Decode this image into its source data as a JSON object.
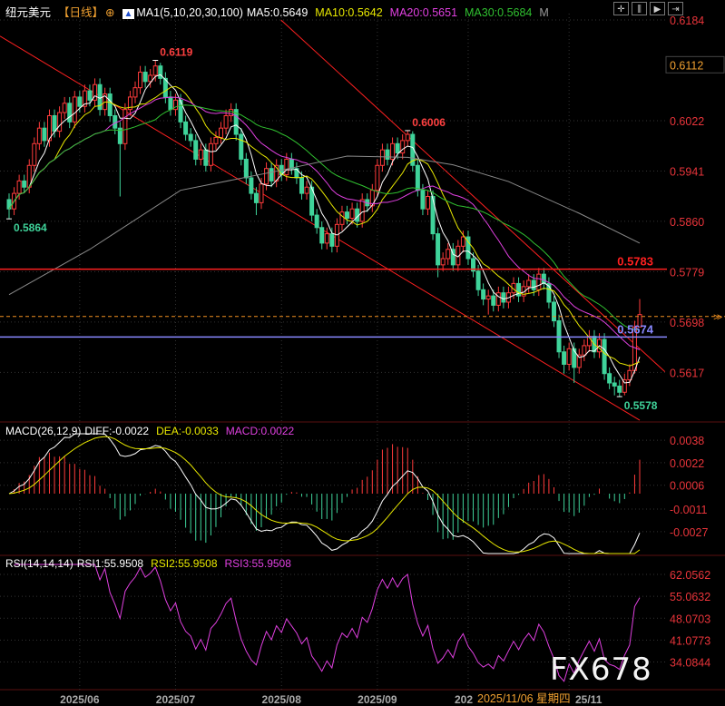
{
  "header": {
    "symbol": "纽元美元",
    "period": "【日线】",
    "ma_label": "MA1(5,10,20,30,100)",
    "ma5": "MA5:0.5649",
    "ma10": "MA10:0.5642",
    "ma20": "MA20:0.5651",
    "ma30": "MA30:0.5684",
    "more": "M"
  },
  "macd_header": {
    "label": "MACD(26,12,9)",
    "diff": "DIFF:-0.0022",
    "dea": "DEA:-0.0033",
    "macd": "MACD:0.0022"
  },
  "rsi_header": {
    "label": "RSI(14,14,14)",
    "rsi1": "RSI1:55.9508",
    "rsi2": "RSI2:55.9508",
    "rsi3": "RSI3:55.9508"
  },
  "tooltip_date": "2025/11/06 星期四",
  "watermark": "FX678",
  "colors": {
    "up": "#ff3b3b",
    "down": "#3fd39a",
    "ma5": "#ffffff",
    "ma10": "#e8e800",
    "ma20": "#e040e0",
    "ma30": "#30c030",
    "ma100": "#8a8a8a",
    "axis_text": "#e8343a",
    "support": "#8888ff",
    "resistance": "#ff2020",
    "last_price": "#f09020"
  },
  "chart_data": [
    {
      "type": "candlestick",
      "price_axis_ticks": [
        "0.6184",
        "0.6022",
        "0.5941",
        "0.5860",
        "0.5779",
        "0.5698",
        "0.5617"
      ],
      "price_range": [
        0.552,
        0.621
      ],
      "crosshair_price": "0.6112",
      "date_ticks": [
        {
          "index": 14,
          "label": "2025/06"
        },
        {
          "index": 33,
          "label": "2025/07"
        },
        {
          "index": 54,
          "label": "2025/08"
        },
        {
          "index": 73,
          "label": "2025/09"
        },
        {
          "index": 91,
          "label": "202"
        },
        {
          "index": 111,
          "label": "25/11"
        }
      ],
      "first_open": 0.5895,
      "close": [
        0.588,
        0.5905,
        0.5925,
        0.5915,
        0.595,
        0.5985,
        0.601,
        0.599,
        0.603,
        0.6005,
        0.6035,
        0.605,
        0.602,
        0.606,
        0.6045,
        0.607,
        0.6055,
        0.608,
        0.604,
        0.6065,
        0.603,
        0.601,
        0.5985,
        0.604,
        0.606,
        0.6075,
        0.61,
        0.6085,
        0.6095,
        0.611,
        0.609,
        0.606,
        0.604,
        0.6055,
        0.602,
        0.6,
        0.599,
        0.596,
        0.5975,
        0.595,
        0.5985,
        0.5995,
        0.601,
        0.603,
        0.604,
        0.6,
        0.596,
        0.593,
        0.5905,
        0.589,
        0.592,
        0.5945,
        0.5925,
        0.595,
        0.5935,
        0.596,
        0.5945,
        0.593,
        0.5905,
        0.5915,
        0.587,
        0.585,
        0.5825,
        0.584,
        0.582,
        0.5855,
        0.5875,
        0.5865,
        0.588,
        0.586,
        0.5895,
        0.5885,
        0.591,
        0.595,
        0.5975,
        0.596,
        0.5985,
        0.597,
        0.599,
        0.6,
        0.595,
        0.591,
        0.588,
        0.59,
        0.584,
        0.579,
        0.58,
        0.5815,
        0.579,
        0.582,
        0.5835,
        0.58,
        0.578,
        0.575,
        0.5735,
        0.574,
        0.5725,
        0.5745,
        0.573,
        0.5745,
        0.576,
        0.574,
        0.5755,
        0.5765,
        0.575,
        0.5775,
        0.576,
        0.573,
        0.57,
        0.565,
        0.563,
        0.5655,
        0.5625,
        0.5645,
        0.566,
        0.5675,
        0.565,
        0.567,
        0.5615,
        0.56,
        0.5595,
        0.5585,
        0.5605,
        0.562,
        0.569,
        0.571
      ],
      "high": [
        0.5905,
        0.5915,
        0.5935,
        0.5935,
        0.596,
        0.5995,
        0.602,
        0.602,
        0.604,
        0.604,
        0.6045,
        0.606,
        0.606,
        0.607,
        0.607,
        0.608,
        0.608,
        0.609,
        0.609,
        0.6075,
        0.6075,
        0.604,
        0.602,
        0.605,
        0.607,
        0.6085,
        0.611,
        0.611,
        0.6105,
        0.6119,
        0.6115,
        0.61,
        0.607,
        0.6065,
        0.6065,
        0.603,
        0.601,
        0.6,
        0.5985,
        0.5985,
        0.5995,
        0.6005,
        0.602,
        0.604,
        0.605,
        0.605,
        0.601,
        0.597,
        0.594,
        0.5915,
        0.593,
        0.5955,
        0.5955,
        0.596,
        0.596,
        0.597,
        0.597,
        0.5955,
        0.594,
        0.5925,
        0.5925,
        0.588,
        0.586,
        0.585,
        0.585,
        0.5865,
        0.5885,
        0.5885,
        0.589,
        0.589,
        0.5905,
        0.5905,
        0.592,
        0.596,
        0.5985,
        0.5985,
        0.5995,
        0.5995,
        0.6,
        0.6006,
        0.6005,
        0.596,
        0.592,
        0.591,
        0.591,
        0.585,
        0.581,
        0.5825,
        0.5825,
        0.583,
        0.5845,
        0.5845,
        0.581,
        0.579,
        0.576,
        0.575,
        0.575,
        0.5755,
        0.5755,
        0.5755,
        0.577,
        0.577,
        0.5765,
        0.5775,
        0.5775,
        0.5785,
        0.5785,
        0.577,
        0.574,
        0.571,
        0.566,
        0.5665,
        0.5665,
        0.5655,
        0.567,
        0.5685,
        0.5685,
        0.568,
        0.568,
        0.5625,
        0.561,
        0.5605,
        0.5615,
        0.563,
        0.57,
        0.5735
      ],
      "low": [
        0.5864,
        0.587,
        0.5895,
        0.5905,
        0.5905,
        0.594,
        0.5975,
        0.598,
        0.598,
        0.5995,
        0.5995,
        0.6025,
        0.601,
        0.601,
        0.6035,
        0.6035,
        0.6045,
        0.6045,
        0.603,
        0.603,
        0.602,
        0.6,
        0.59,
        0.5975,
        0.603,
        0.605,
        0.6065,
        0.6075,
        0.6075,
        0.6085,
        0.608,
        0.605,
        0.603,
        0.603,
        0.601,
        0.599,
        0.598,
        0.595,
        0.595,
        0.594,
        0.594,
        0.5975,
        0.5985,
        0.6,
        0.602,
        0.599,
        0.595,
        0.592,
        0.5895,
        0.587,
        0.588,
        0.591,
        0.5915,
        0.5915,
        0.5925,
        0.5925,
        0.5935,
        0.592,
        0.5895,
        0.5895,
        0.586,
        0.584,
        0.5815,
        0.5815,
        0.581,
        0.581,
        0.5845,
        0.5855,
        0.5855,
        0.585,
        0.585,
        0.5875,
        0.5875,
        0.59,
        0.594,
        0.595,
        0.595,
        0.596,
        0.596,
        0.598,
        0.594,
        0.59,
        0.587,
        0.587,
        0.583,
        0.577,
        0.578,
        0.579,
        0.578,
        0.578,
        0.581,
        0.579,
        0.577,
        0.574,
        0.5725,
        0.571,
        0.5715,
        0.5715,
        0.572,
        0.572,
        0.5735,
        0.573,
        0.573,
        0.5745,
        0.574,
        0.574,
        0.575,
        0.572,
        0.569,
        0.564,
        0.5615,
        0.562,
        0.56,
        0.5615,
        0.5635,
        0.565,
        0.564,
        0.564,
        0.5605,
        0.559,
        0.558,
        0.5578,
        0.558,
        0.5595,
        0.5615,
        0.569
      ],
      "ma100_points": [
        [
          0,
          0.5742
        ],
        [
          16,
          0.5815
        ],
        [
          34,
          0.591
        ],
        [
          52,
          0.5939
        ],
        [
          67,
          0.5965
        ],
        [
          79,
          0.5963
        ],
        [
          88,
          0.5951
        ],
        [
          99,
          0.5924
        ],
        [
          113,
          0.5873
        ],
        [
          125,
          0.5825
        ]
      ],
      "annotations": [
        {
          "index": 29,
          "price": 0.6119,
          "label": "0.6119",
          "color": "#ff4040"
        },
        {
          "index": 79,
          "price": 0.6006,
          "label": "0.6006",
          "color": "#ff4040"
        },
        {
          "index": 0,
          "price": 0.5864,
          "label": "0.5864",
          "color": "#3fd39a"
        },
        {
          "index": 121,
          "price": 0.5578,
          "label": "0.5578",
          "color": "#3fd39a"
        }
      ],
      "horizontal_lines": [
        {
          "price": 0.5783,
          "label": "0.5783",
          "color": "#ff2020",
          "style": "solid"
        },
        {
          "price": 0.5674,
          "label": "0.5674",
          "color": "#8888ff",
          "style": "solid"
        },
        {
          "price": 0.5707,
          "label": "",
          "color": "#f09020",
          "style": "dashed"
        }
      ],
      "trend_lines": [
        {
          "from": [
            53.9,
            0.6184
          ],
          "to": [
            130,
            0.5618
          ],
          "color": "#ff2020"
        },
        {
          "from": [
            -1.8,
            0.6158
          ],
          "to": [
            125,
            0.554
          ],
          "color": "#ff2020"
        }
      ]
    },
    {
      "type": "macd",
      "params": [
        26,
        12,
        9
      ],
      "axis_ticks": [
        "0.0038",
        "0.0022",
        "0.0006",
        "-0.0011",
        "-0.0027"
      ],
      "last": {
        "diff": -0.0022,
        "dea": -0.0033,
        "macd": 0.0022
      }
    },
    {
      "type": "rsi",
      "params": [
        14,
        14,
        14
      ],
      "axis_ticks": [
        "62.0562",
        "55.0632",
        "48.0703",
        "41.0773",
        "34.0844"
      ],
      "last": {
        "rsi1": 55.9508,
        "rsi2": 55.9508,
        "rsi3": 55.9508
      }
    }
  ]
}
